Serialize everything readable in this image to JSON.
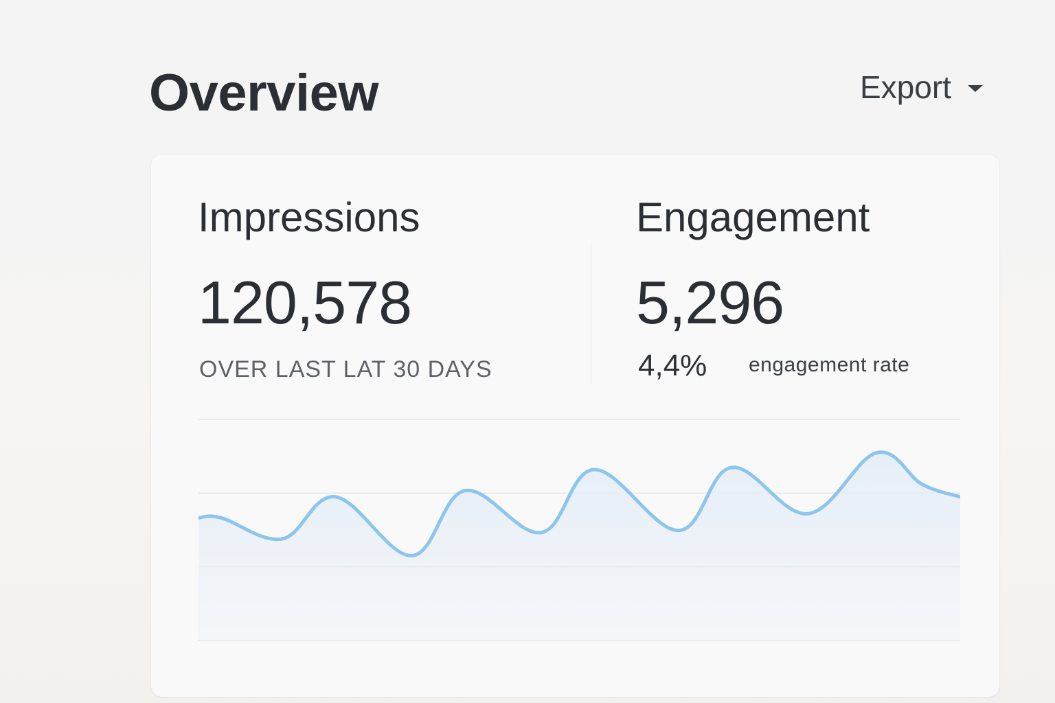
{
  "header": {
    "title": "Overview",
    "export_label": "Export",
    "export_icon": "caret-down-icon"
  },
  "metrics": {
    "impressions": {
      "title": "Impressions",
      "value": "120,578",
      "caption": "OVER LAST LAT 30 DAYS"
    },
    "engagement": {
      "title": "Engagement",
      "value": "5,296",
      "rate_value": "4,4%",
      "rate_label": "engagement rate"
    }
  },
  "colors": {
    "line": "#8cc6ec",
    "fill": "#e6eef7",
    "grid": "#eaeaec",
    "text": "#2b2f33"
  },
  "chart_data": {
    "type": "area",
    "title": "",
    "xlabel": "",
    "ylabel": "",
    "grid": true,
    "gridlines_count": 4,
    "legend": "none",
    "axis_labels_visible": false,
    "ylim": [
      0,
      100
    ],
    "x": [
      0,
      3,
      11,
      18,
      28,
      35,
      45,
      52,
      63,
      70,
      80,
      89,
      95,
      100
    ],
    "series": [
      {
        "name": "Impressions",
        "values": [
          45,
          45,
          35,
          55,
          27,
          58,
          38,
          68,
          39,
          69,
          47,
          76,
          61,
          55
        ]
      }
    ]
  }
}
